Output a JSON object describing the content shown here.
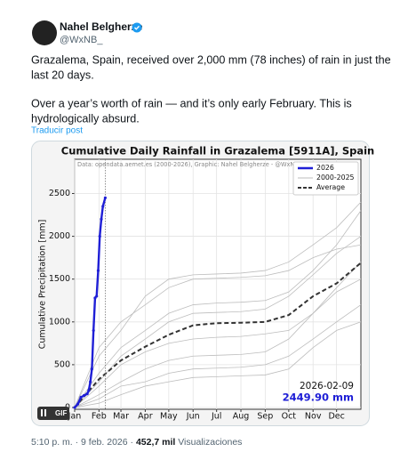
{
  "post": {
    "author": "Nahel Belgherze",
    "handle": "@WxNB_",
    "paragraphs": [
      [
        "Grazalema, Spain, received over 2,000 mm (78 inches) of rain in just the",
        "last 20 days."
      ],
      [
        "Over a year’s worth of rain — and it’s only early February. This is",
        "hydrologically absurd."
      ]
    ],
    "translate": "Traducir post",
    "gif_label": "GIF",
    "time": "5:10 p. m.",
    "separator": "·",
    "date": "9 feb. 2026",
    "views_count": "452,7 mil",
    "views_label": "Visualizaciones"
  },
  "chart_data": {
    "type": "line",
    "title": "Cumulative Daily Rainfall in Grazalema [5911A], Spain",
    "subtitle": "Data: opendata.aemet.es (2000-2026), Graphic: Nahel Belgherze - @WxNB_",
    "y_label": "Cumulative Precipitation [mm]",
    "xlim": [
      1,
      366
    ],
    "ylim": [
      0,
      2900
    ],
    "xticks": [
      {
        "value": 1,
        "label": "Jan"
      },
      {
        "value": 32,
        "label": "Feb"
      },
      {
        "value": 60,
        "label": "Mar"
      },
      {
        "value": 91,
        "label": "Apr"
      },
      {
        "value": 121,
        "label": "May"
      },
      {
        "value": 152,
        "label": "Jun"
      },
      {
        "value": 182,
        "label": "Jul"
      },
      {
        "value": 213,
        "label": "Aug"
      },
      {
        "value": 244,
        "label": "Sep"
      },
      {
        "value": 274,
        "label": "Oct"
      },
      {
        "value": 305,
        "label": "Nov"
      },
      {
        "value": 335,
        "label": "Dec"
      }
    ],
    "yticks": [
      0,
      500,
      1000,
      1500,
      2000,
      2500
    ],
    "grid": true,
    "legend": "upper right",
    "marker_x": 40,
    "series": [
      {
        "name": "2026",
        "color": "#1f1fd6",
        "x": [
          1,
          5,
          9,
          13,
          17,
          19,
          21,
          23,
          25,
          27,
          29,
          31,
          33,
          35,
          37,
          40
        ],
        "values": [
          0,
          40,
          120,
          140,
          160,
          200,
          300,
          450,
          900,
          1280,
          1300,
          1600,
          2000,
          2200,
          2350,
          2449.9
        ]
      },
      {
        "name": "2000-2025",
        "color": "#bdbdbd",
        "x": [
          1,
          32,
          60,
          91,
          121,
          152,
          182,
          213,
          244,
          274,
          305,
          335,
          366
        ],
        "lines": [
          [
            0,
            150,
            300,
            450,
            550,
            600,
            610,
            620,
            650,
            800,
            1100,
            1400,
            1700
          ],
          [
            0,
            400,
            700,
            900,
            1100,
            1200,
            1220,
            1230,
            1250,
            1350,
            1600,
            1900,
            2300
          ],
          [
            0,
            100,
            250,
            300,
            400,
            450,
            460,
            470,
            500,
            600,
            800,
            1000,
            1200
          ],
          [
            0,
            600,
            900,
            1300,
            1500,
            1550,
            1560,
            1570,
            1600,
            1700,
            1900,
            2100,
            2400
          ],
          [
            0,
            250,
            500,
            650,
            750,
            800,
            820,
            830,
            860,
            900,
            1100,
            1350,
            1500
          ],
          [
            0,
            50,
            150,
            250,
            300,
            350,
            360,
            370,
            380,
            450,
            700,
            900,
            1000
          ],
          [
            0,
            300,
            600,
            800,
            1000,
            1100,
            1110,
            1120,
            1150,
            1300,
            1550,
            1800,
            2000
          ],
          [
            0,
            700,
            1000,
            1200,
            1400,
            1500,
            1510,
            1520,
            1540,
            1600,
            1750,
            1850,
            1900
          ]
        ]
      },
      {
        "name": "Average",
        "color": "#333333",
        "x": [
          1,
          15,
          32,
          60,
          91,
          121,
          152,
          182,
          213,
          244,
          274,
          305,
          335,
          366
        ],
        "values": [
          0,
          150,
          330,
          550,
          710,
          850,
          960,
          985,
          990,
          1000,
          1080,
          1300,
          1450,
          1690
        ]
      }
    ],
    "annotation_date": "2026-02-09",
    "annotation_total": "2449.90 mm"
  }
}
